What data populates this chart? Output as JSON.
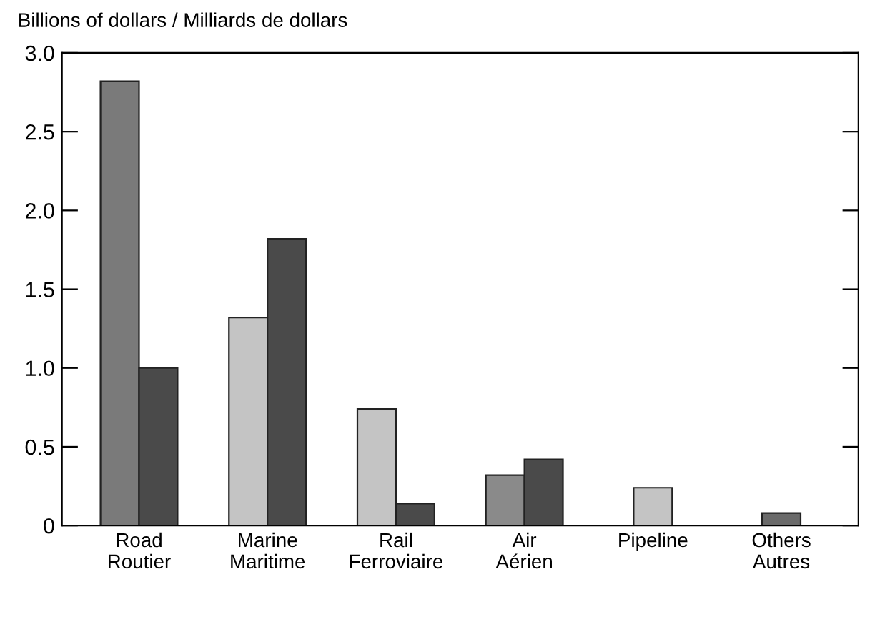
{
  "chart_data": {
    "type": "bar",
    "ylabel": "Billions of dollars / Milliards de dollars",
    "categories": [
      "Road\nRoutier",
      "Marine\nMaritime",
      "Rail\nFerroviaire",
      "Air\nAérien",
      "Pipeline",
      "Others\nAutres"
    ],
    "series": [
      {
        "colors": [
          "#7a7a7a",
          "#c4c4c4",
          "#c4c4c4",
          "#8a8a8a",
          "#c4c4c4",
          "#6a6a6a"
        ],
        "values": [
          2.82,
          1.32,
          0.74,
          0.32,
          0.24,
          null
        ]
      },
      {
        "colors": [
          "#4a4a4a",
          "#4a4a4a",
          "#4a4a4a",
          "#4a4a4a",
          "#6a6a6a",
          "#6a6a6a"
        ],
        "values": [
          1.0,
          1.82,
          0.14,
          0.42,
          null,
          0.08
        ]
      }
    ],
    "ylim": [
      0,
      3.0
    ],
    "yticks": [
      0,
      0.5,
      {
        "value": 1,
        "label": "1.0"
      },
      1.5,
      {
        "value": 2,
        "label": "2.0"
      },
      2.5,
      {
        "value": 3,
        "label": "3.0"
      }
    ],
    "grid": false,
    "legend": false
  }
}
